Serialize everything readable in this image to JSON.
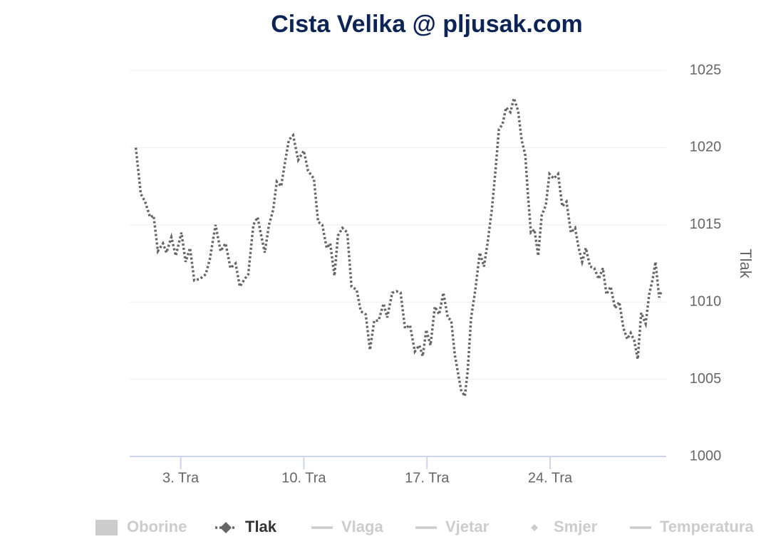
{
  "chart_data": {
    "type": "line",
    "title": "Cista Velika @ pljusak.com",
    "y_label": "Tlak",
    "grid": true,
    "xlim": [
      0.1,
      30.6
    ],
    "xticks": [
      {
        "value": 3,
        "label": "3. Tra"
      },
      {
        "value": 10,
        "label": "10. Tra"
      },
      {
        "value": 17,
        "label": "17. Tra"
      },
      {
        "value": 24,
        "label": "24. Tra"
      }
    ],
    "ylim": [
      1000,
      1025
    ],
    "yticks": [
      1000,
      1005,
      1010,
      1015,
      1020,
      1025
    ],
    "series": [
      {
        "name": "Oborine",
        "symbol": "rect",
        "visible": false
      },
      {
        "name": "Tlak",
        "symbol": "line-diamond",
        "visible": true,
        "color": "#666666",
        "x": [
          0.45,
          0.73,
          0.98,
          1.26,
          1.46,
          1.7,
          1.99,
          2.19,
          2.47,
          2.72,
          3.04,
          3.28,
          3.53,
          3.77,
          4.09,
          4.42,
          4.66,
          4.98,
          5.27,
          5.55,
          5.83,
          6.12,
          6.36,
          6.64,
          6.84,
          7.13,
          7.37,
          7.49,
          7.78,
          8.02,
          8.26,
          8.46,
          8.71,
          8.95,
          9.15,
          9.39,
          9.68,
          10.0,
          10.24,
          10.57,
          10.81,
          11.05,
          11.3,
          11.5,
          11.74,
          11.94,
          12.19,
          12.47,
          12.71,
          13.0,
          13.24,
          13.52,
          13.76,
          14.0,
          14.25,
          14.53,
          14.74,
          15.02,
          15.26,
          15.5,
          15.75,
          16.03,
          16.31,
          16.56,
          16.76,
          16.96,
          17.2,
          17.45,
          17.69,
          17.93,
          18.18,
          18.38,
          18.58,
          18.78,
          18.94,
          19.15,
          19.31,
          19.51,
          19.75,
          20.0,
          20.24,
          20.44,
          20.69,
          20.89,
          21.09,
          21.29,
          21.5,
          21.74,
          21.94,
          22.18,
          22.38,
          22.59,
          22.75,
          22.91,
          23.11,
          23.32,
          23.52,
          23.76,
          23.96,
          24.21,
          24.45,
          24.69,
          24.93,
          25.18,
          25.42,
          25.62,
          25.82,
          26.03,
          26.27,
          26.51,
          26.76,
          27.0,
          27.2,
          27.44,
          27.69,
          27.93,
          28.17,
          28.38,
          28.58,
          28.78,
          28.98,
          29.18,
          29.43,
          29.63,
          29.83,
          29.99,
          30.2,
          30.32
        ],
        "values": [
          1020.0,
          1017.0,
          1016.5,
          1015.5,
          1015.6,
          1013.3,
          1013.8,
          1013.2,
          1014.2,
          1013.0,
          1014.5,
          1012.6,
          1013.5,
          1011.4,
          1011.5,
          1011.8,
          1012.8,
          1015.0,
          1013.3,
          1013.8,
          1012.2,
          1012.5,
          1011.0,
          1011.5,
          1011.8,
          1015.0,
          1015.5,
          1014.8,
          1013.2,
          1015.0,
          1016.0,
          1017.8,
          1017.5,
          1019.2,
          1020.5,
          1020.8,
          1019.2,
          1019.8,
          1018.5,
          1018.0,
          1015.2,
          1015.0,
          1013.5,
          1013.8,
          1011.7,
          1014.3,
          1014.8,
          1014.5,
          1011.0,
          1010.8,
          1009.4,
          1009.2,
          1006.9,
          1008.8,
          1008.8,
          1009.9,
          1009.0,
          1010.6,
          1010.7,
          1010.6,
          1008.3,
          1008.5,
          1006.8,
          1007.2,
          1006.5,
          1008.2,
          1007.2,
          1009.7,
          1009.2,
          1010.6,
          1009.0,
          1008.8,
          1006.6,
          1005.3,
          1004.3,
          1003.9,
          1005.5,
          1009.0,
          1010.8,
          1013.2,
          1012.3,
          1013.8,
          1016.0,
          1018.5,
          1021.2,
          1021.5,
          1022.6,
          1022.3,
          1023.2,
          1022.4,
          1020.5,
          1019.5,
          1016.8,
          1014.5,
          1014.7,
          1013.0,
          1015.6,
          1016.3,
          1018.3,
          1018.0,
          1018.3,
          1016.2,
          1016.5,
          1014.5,
          1014.8,
          1013.5,
          1012.6,
          1013.5,
          1012.3,
          1012.2,
          1011.5,
          1012.2,
          1010.5,
          1011.0,
          1009.6,
          1010.0,
          1008.3,
          1007.6,
          1008.0,
          1007.5,
          1006.3,
          1009.3,
          1008.6,
          1010.5,
          1011.5,
          1012.6,
          1010.3,
          1010.7
        ]
      },
      {
        "name": "Vlaga",
        "symbol": "line",
        "visible": false
      },
      {
        "name": "Vjetar",
        "symbol": "line",
        "visible": false
      },
      {
        "name": "Smjer",
        "symbol": "diamond",
        "visible": false
      },
      {
        "name": "Temperatura",
        "symbol": "line",
        "visible": false
      }
    ]
  }
}
